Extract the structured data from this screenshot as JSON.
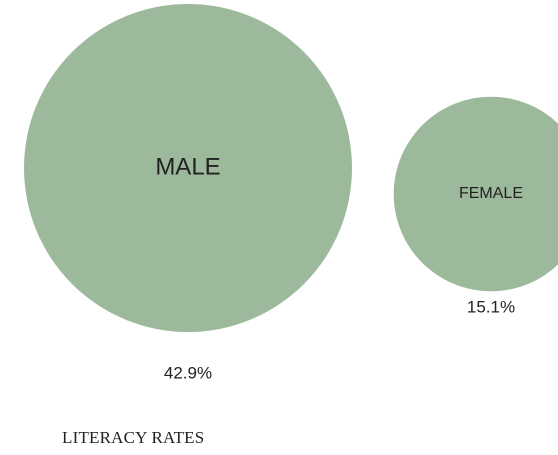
{
  "chart_data": {
    "type": "bubble",
    "title": "LITERACY RATES",
    "categories": [
      "MALE",
      "FEMALE"
    ],
    "values": [
      42.9,
      15.1
    ],
    "value_labels": [
      "42.9%",
      "15.1%"
    ],
    "unit": "%",
    "color": "#9cb99c"
  }
}
